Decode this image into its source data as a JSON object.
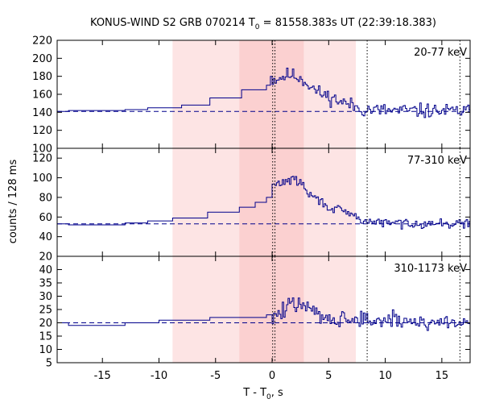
{
  "title": {
    "prefix": "KONUS-WIND S2 GRB 070214 T",
    "sub": "0",
    "suffix": " = 81558.383s UT (22:39:18.383)"
  },
  "xlabel": {
    "prefix": "T - T",
    "sub": "0",
    "suffix": ", s"
  },
  "ylabel": "counts / 128 ms",
  "chart_data": {
    "type": "line",
    "subtype": "step-histogram",
    "xlim": [
      -19,
      17.5
    ],
    "xticks": [
      -15,
      -10,
      -5,
      0,
      5,
      10,
      15
    ],
    "xtick_labels": [
      "-15",
      "-10",
      "-5",
      "0",
      "5",
      "10",
      "15"
    ],
    "shaded_regions": [
      {
        "x0": -8.8,
        "x1": 7.4,
        "color": "#fde4e4"
      },
      {
        "x0": -2.9,
        "x1": 2.8,
        "color": "#fbd0d0"
      }
    ],
    "vlines": [
      0.05,
      0.25,
      8.4,
      16.6
    ],
    "line_color": "#00008b",
    "panels": [
      {
        "label": "20-77 keV",
        "ylim": [
          100,
          220
        ],
        "yticks": [
          100,
          120,
          140,
          160,
          180,
          200,
          220
        ],
        "ytick_labels": [
          "100",
          "120",
          "140",
          "160",
          "180",
          "200",
          "220"
        ],
        "background": 141,
        "steps": [
          [
            -19,
            141
          ],
          [
            -18,
            142
          ],
          [
            -13,
            143
          ],
          [
            -11,
            145
          ],
          [
            -8,
            148
          ],
          [
            -5.5,
            156
          ],
          [
            -2.7,
            165
          ],
          [
            -0.5,
            170
          ],
          [
            -0.15,
            180
          ]
        ],
        "fluct": {
          "x0": 0,
          "x1": 17.5,
          "dx": 0.128,
          "seed": 11,
          "knots": [
            [
              0,
              176
            ],
            [
              1.5,
              182
            ],
            [
              2.5,
              178
            ],
            [
              4,
              162
            ],
            [
              6,
              152
            ],
            [
              8,
              143
            ],
            [
              10,
              142
            ],
            [
              17.5,
              141
            ]
          ],
          "sigma": 12
        }
      },
      {
        "label": "77-310 keV",
        "ylim": [
          20,
          130
        ],
        "yticks": [
          20,
          40,
          60,
          80,
          100,
          120
        ],
        "ytick_labels": [
          "20",
          "40",
          "60",
          "80",
          "100",
          "120"
        ],
        "background": 53,
        "steps": [
          [
            -19,
            53
          ],
          [
            -18,
            52
          ],
          [
            -13,
            54
          ],
          [
            -11,
            56
          ],
          [
            -8.8,
            59
          ],
          [
            -5.7,
            65
          ],
          [
            -2.9,
            70
          ],
          [
            -1.5,
            75
          ],
          [
            -0.5,
            80
          ]
        ],
        "fluct": {
          "x0": 0,
          "x1": 17.5,
          "dx": 0.128,
          "seed": 29,
          "knots": [
            [
              0,
              92
            ],
            [
              1.5,
              98
            ],
            [
              2.5,
              96
            ],
            [
              3,
              85
            ],
            [
              5,
              70
            ],
            [
              7,
              62
            ],
            [
              8,
              56
            ],
            [
              10,
              54
            ],
            [
              17.5,
              53
            ]
          ],
          "sigma": 7
        }
      },
      {
        "label": "310-1173 keV",
        "ylim": [
          5,
          45
        ],
        "yticks": [
          5,
          10,
          15,
          20,
          25,
          30,
          35,
          40
        ],
        "ytick_labels": [
          "5",
          "10",
          "15",
          "20",
          "25",
          "30",
          "35",
          "40"
        ],
        "background": 20,
        "steps": [
          [
            -19,
            20
          ],
          [
            -18,
            19
          ],
          [
            -13,
            20
          ],
          [
            -10,
            21
          ],
          [
            -5.5,
            22
          ],
          [
            -2.7,
            22
          ],
          [
            -0.5,
            23
          ]
        ],
        "fluct": {
          "x0": 0,
          "x1": 17.5,
          "dx": 0.128,
          "seed": 47,
          "knots": [
            [
              0,
              22
            ],
            [
              1.5,
              26
            ],
            [
              2.5,
              28
            ],
            [
              3,
              25
            ],
            [
              5,
              22
            ],
            [
              8,
              21
            ],
            [
              17.5,
              20
            ]
          ],
          "sigma": 5
        }
      }
    ]
  }
}
